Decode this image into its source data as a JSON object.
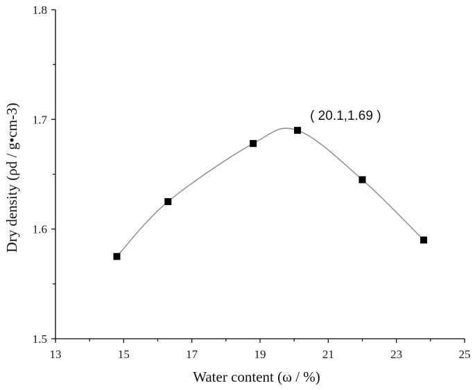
{
  "chart_data": {
    "type": "scatter",
    "xlabel": "Water content (ω / %)",
    "ylabel": "Dry density (ρd / g•cm-3)",
    "xlim": [
      13,
      25
    ],
    "ylim": [
      1.5,
      1.8
    ],
    "x_ticks": [
      "13",
      "15",
      "17",
      "19",
      "21",
      "23",
      "25"
    ],
    "y_ticks": [
      "1.5",
      "1.6",
      "1.7",
      "1.8"
    ],
    "grid": false,
    "series": [
      {
        "points": [
          {
            "x": 14.8,
            "y": 1.575
          },
          {
            "x": 16.3,
            "y": 1.625
          },
          {
            "x": 18.8,
            "y": 1.678
          },
          {
            "x": 20.1,
            "y": 1.69
          },
          {
            "x": 22.0,
            "y": 1.645
          },
          {
            "x": 23.8,
            "y": 1.59
          }
        ],
        "fit_curve": true,
        "color": "#000000"
      }
    ],
    "annotations": [
      {
        "text": "( 20.1,1.69 )",
        "x": 20.1,
        "y": 1.69
      }
    ]
  }
}
